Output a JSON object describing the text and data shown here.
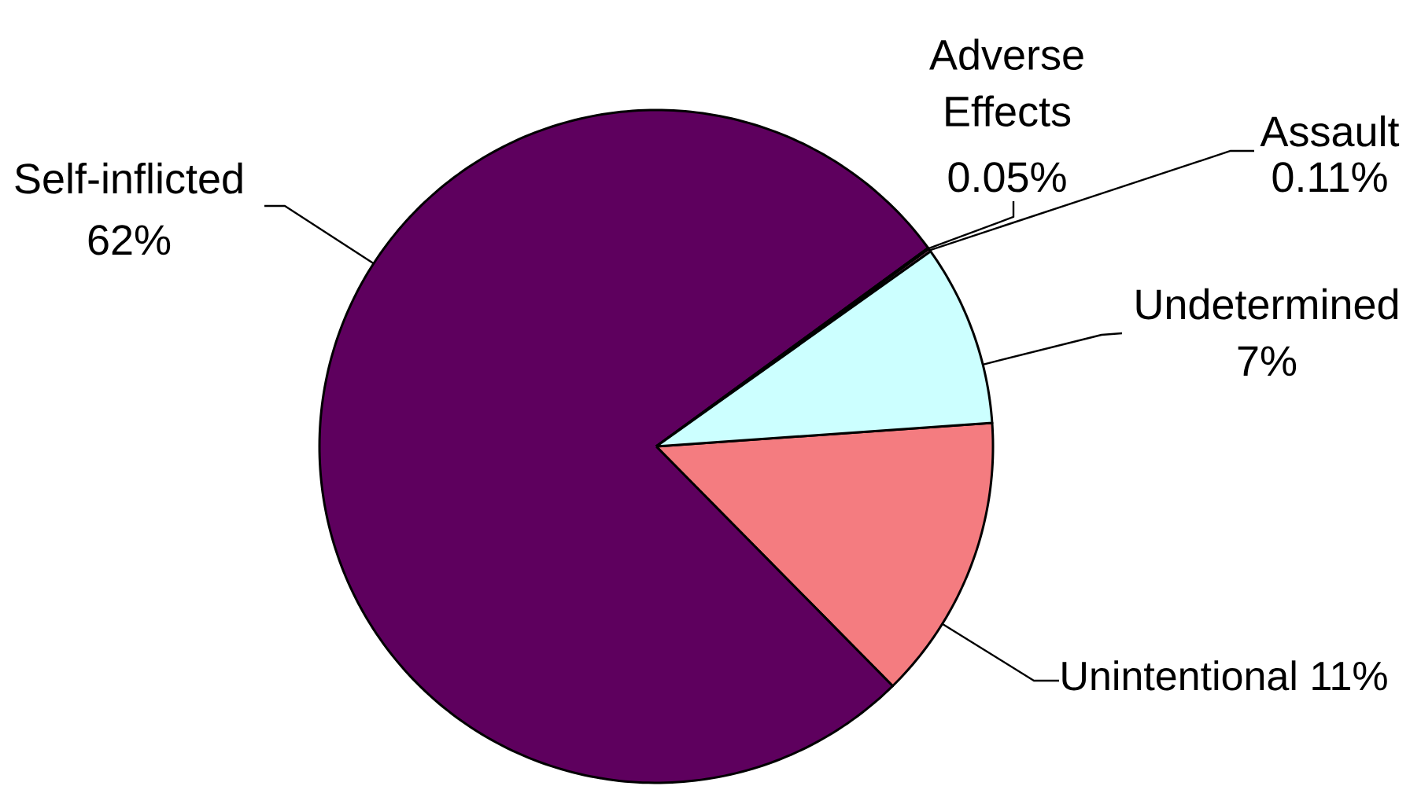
{
  "chart_data": {
    "type": "pie",
    "categories": [
      "Unintentional",
      "Self-inflicted",
      "Adverse Effects",
      "Assault",
      "Undetermined"
    ],
    "values": [
      11,
      62,
      0.05,
      0.11,
      7
    ],
    "colors": [
      "#f47c80",
      "#5e005e",
      "#993366",
      "#cc6699",
      "#ccffff"
    ],
    "value_labels": [
      "11%",
      "62%",
      "0.05%",
      "0.11%",
      "7%"
    ]
  }
}
